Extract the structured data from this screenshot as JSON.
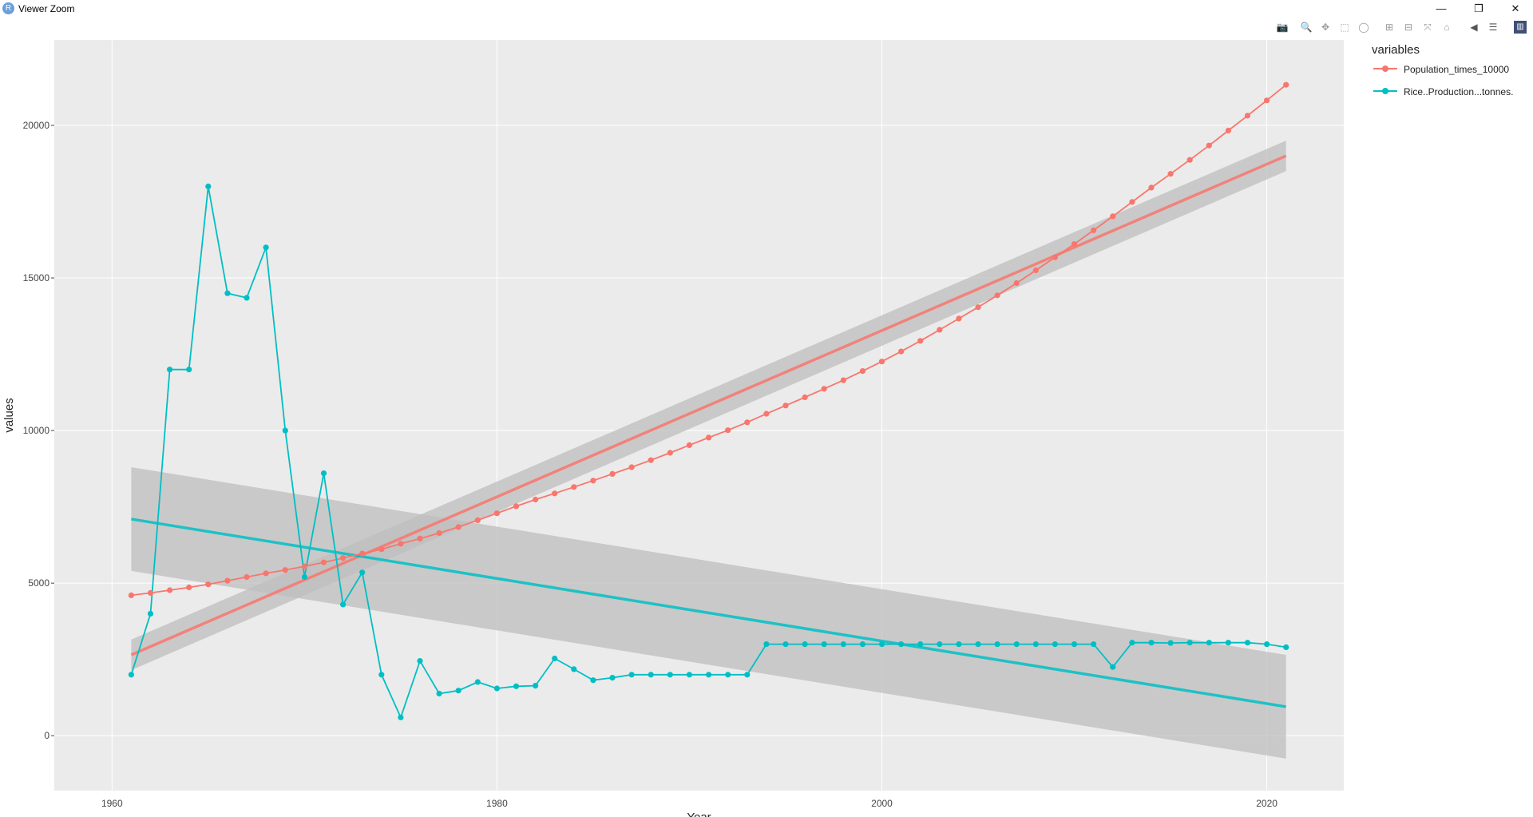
{
  "window": {
    "title": "Viewer Zoom",
    "app_icon": "R",
    "buttons": {
      "minimize": "—",
      "restore": "❐",
      "close": "✕"
    }
  },
  "toolbar": {
    "icons": [
      "camera-icon",
      "zoom-icon",
      "pan-icon",
      "box-select-icon",
      "lasso-select-icon",
      "zoom-in-icon",
      "zoom-out-icon",
      "autoscale-icon",
      "reset-axes-icon",
      "hover-closest-icon",
      "hover-compare-icon",
      "plotly-logo-icon"
    ]
  },
  "legend": {
    "title": "variables",
    "items": [
      {
        "label": "Population_times_10000",
        "color": "#F8766D"
      },
      {
        "label": "Rice..Production...tonnes.",
        "color": "#00BFC4"
      }
    ]
  },
  "chart_data": {
    "type": "line",
    "xlabel": "Year",
    "ylabel": "values",
    "xlim": [
      1957,
      2024
    ],
    "ylim": [
      -1800,
      22800
    ],
    "xticks": [
      1960,
      1980,
      2000,
      2020
    ],
    "yticks": [
      0,
      5000,
      10000,
      15000,
      20000
    ],
    "grid": true,
    "legend_position": "right",
    "colors": {
      "panel": "#EBEBEB",
      "grid": "#FFFFFF",
      "ribbon": "#BEBEBE"
    },
    "x": [
      1961,
      1962,
      1963,
      1964,
      1965,
      1966,
      1967,
      1968,
      1969,
      1970,
      1971,
      1972,
      1973,
      1974,
      1975,
      1976,
      1977,
      1978,
      1979,
      1980,
      1981,
      1982,
      1983,
      1984,
      1985,
      1986,
      1987,
      1988,
      1989,
      1990,
      1991,
      1992,
      1993,
      1994,
      1995,
      1996,
      1997,
      1998,
      1999,
      2000,
      2001,
      2002,
      2003,
      2004,
      2005,
      2006,
      2007,
      2008,
      2009,
      2010,
      2011,
      2012,
      2013,
      2014,
      2015,
      2016,
      2017,
      2018,
      2019,
      2020,
      2021
    ],
    "series": [
      {
        "name": "Population_times_10000",
        "color": "#F8766D",
        "values": [
          4600,
          4680,
          4770,
          4860,
          4960,
          5080,
          5200,
          5320,
          5430,
          5550,
          5680,
          5820,
          5970,
          6110,
          6290,
          6460,
          6640,
          6840,
          7060,
          7290,
          7520,
          7740,
          7940,
          8150,
          8360,
          8580,
          8800,
          9030,
          9270,
          9520,
          9770,
          10010,
          10270,
          10550,
          10820,
          11090,
          11370,
          11650,
          11950,
          12260,
          12590,
          12940,
          13300,
          13670,
          14040,
          14430,
          14830,
          15250,
          15680,
          16110,
          16560,
          17020,
          17490,
          17960,
          18410,
          18870,
          19340,
          19830,
          20320,
          20820,
          21330
        ],
        "trend": {
          "start": [
            1961,
            2650
          ],
          "end": [
            2021,
            19000
          ],
          "ci_start": [
            2150,
            3150
          ],
          "ci_end": [
            18500,
            19500
          ]
        }
      },
      {
        "name": "Rice..Production...tonnes.",
        "color": "#00BFC4",
        "values": [
          2000,
          4000,
          12000,
          12000,
          18000,
          14500,
          14350,
          16000,
          10000,
          5200,
          8600,
          4300,
          5350,
          2000,
          600,
          2450,
          1380,
          1480,
          1760,
          1550,
          1620,
          1640,
          2530,
          2180,
          1820,
          1900,
          2000,
          2000,
          2000,
          2000,
          2000,
          2000,
          2000,
          3000,
          3000,
          3000,
          3000,
          3000,
          3000,
          3000,
          3000,
          3000,
          3000,
          3000,
          3000,
          3000,
          3000,
          3000,
          3000,
          3000,
          3000,
          2250,
          3050,
          3050,
          3040,
          3050,
          3050,
          3050,
          3050,
          3000,
          2900
        ],
        "trend": {
          "start": [
            1961,
            7100
          ],
          "end": [
            2021,
            950
          ],
          "ci_start": [
            5400,
            8800
          ],
          "ci_end": [
            -750,
            2650
          ]
        }
      }
    ]
  }
}
